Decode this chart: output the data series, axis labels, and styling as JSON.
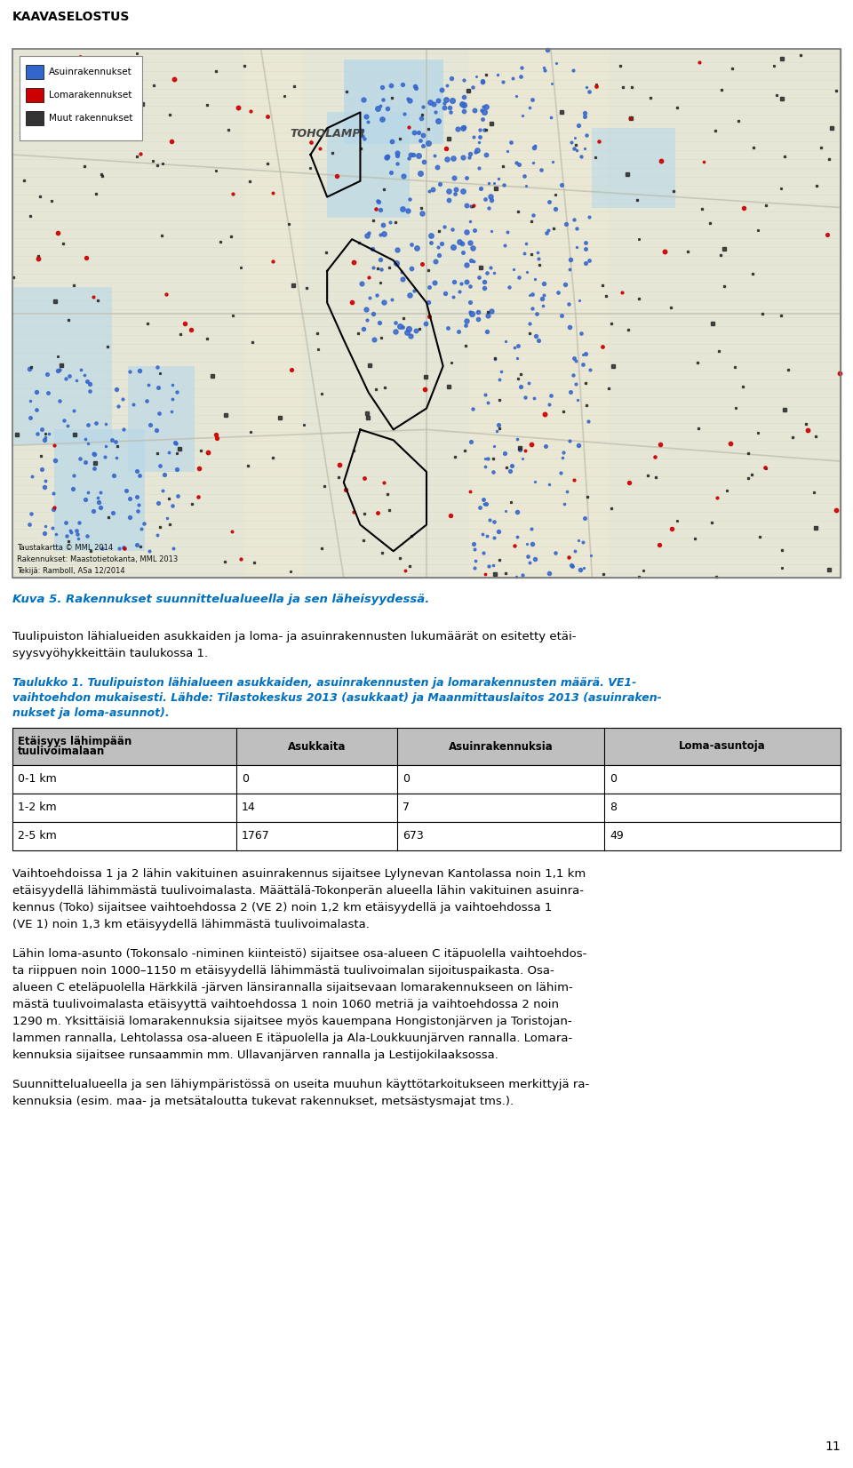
{
  "header": "KAAVASELOSTUS",
  "page_number": "11",
  "figure_caption": "Kuva 5. Rakennukset suunnittelualueella ja sen läheisyydessä.",
  "paragraph1": "Tuulipuiston lähialueiden asukkaiden ja loma- ja asuinrakennusten lukumäärät on esitetty etäi-\nsyysvyöhykkeittäin taulukossa 1.",
  "table_title_line1": "Taulukko 1. Tuulipuiston lähialueen asukkaiden, asuinrakennusten ja lomarakennusten määrä. VE1-",
  "table_title_line2": "vaihtoehdon mukaisesti. Lähde: Tilastokeskus 2013 (asukkaat) ja Maanmittauslaitos 2013 (asuinraken-",
  "table_title_line3": "nukset ja loma-asunnot).",
  "table_header": [
    "Etäisyys lähimpään\ntuulivoimalaan",
    "Asukkaita",
    "Asuinrakennuksia",
    "Loma-asuntoja"
  ],
  "table_rows": [
    [
      "0-1 km",
      "0",
      "0",
      "0"
    ],
    [
      "1-2 km",
      "14",
      "7",
      "8"
    ],
    [
      "2-5 km",
      "1767",
      "673",
      "49"
    ]
  ],
  "paragraph2_lines": [
    "Vaihtoehdoissa 1 ja 2 lähin vakituinen asuinrakennus sijaitsee Lylynevan Kantolassa noin 1,1 km",
    "etäisyydellä lähimmästä tuulivoimalasta. Määttälä-Tokonperän alueella lähin vakituinen asuinra-",
    "kennus (Toko) sijaitsee vaihtoehdossa 2 (VE 2) noin 1,2 km etäisyydellä ja vaihtoehdossa 1",
    "(VE 1) noin 1,3 km etäisyydellä lähimmästä tuulivoimalasta."
  ],
  "paragraph3_lines": [
    "Lähin loma-asunto (Tokonsalo -niminen kiinteistö) sijaitsee osa-alueen C itäpuolella vaihtoehdos-",
    "ta riippuen noin 1000–1150 m etäisyydellä lähimmästä tuulivoimalan sijoituspaikasta. Osa-",
    "alueen C eteläpuolella Härkkilä -järven länsirannalla sijaitsevaan lomarakennukseen on lähim-",
    "mästä tuulivoimalasta etäisyyttä vaihtoehdossa 1 noin 1060 metriä ja vaihtoehdossa 2 noin",
    "1290 m. Yksittäisiä lomarakennuksia sijaitsee myös kauempana Hongistonjärven ja Toristojan-",
    "lammen rannalla, Lehtolassa osa-alueen E itäpuolella ja Ala-Loukkuunjärven rannalla. Lomara-",
    "kennuksia sijaitsee runsaammin mm. Ullavanjärven rannalla ja Lestijokilaaksossa."
  ],
  "paragraph4_lines": [
    "Suunnittelualueella ja sen lähiympäristössä on useita muuhun käyttötarkoitukseen merkittyjä ra-",
    "kennuksia (esim. maa- ja metsätaloutta tukevat rakennukset, metsästysmajat tms.)."
  ],
  "text_color": "#000000",
  "header_color": "#000000",
  "caption_color": "#0070c0",
  "table_title_color": "#0070c0",
  "table_header_bg": "#bfbfbf",
  "table_border_color": "#000000",
  "page_bg": "#ffffff",
  "map_bg": "#c5dfe8",
  "map_land": "#ede8d5",
  "map_water_light": "#b8d8e8",
  "legend_items": [
    {
      "label": "Asuinrakennukset",
      "color": "#3366cc"
    },
    {
      "label": "Lomarakennukset",
      "color": "#cc0000"
    },
    {
      "label": "Muut rakennukset",
      "color": "#333333"
    }
  ],
  "attr_lines": [
    "Taustakartta © MML 2014",
    "Rakennukset: Maastotietokanta, MML 2013",
    "Tekijä: Ramboll, ASa 12/2014"
  ]
}
